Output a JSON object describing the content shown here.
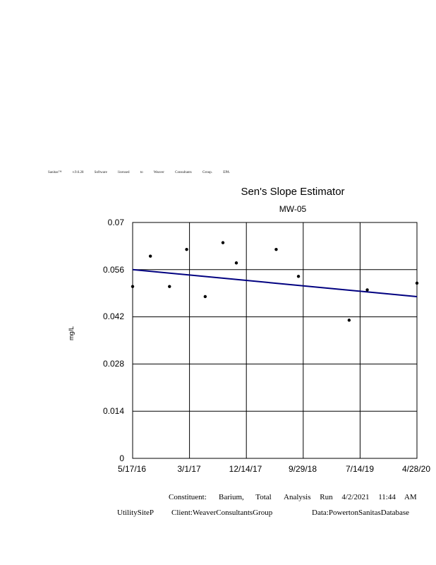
{
  "header": {
    "license_text": "Sanitas™ v.9.6.28 Software licensed to Weaver Consultants Group. EPA"
  },
  "chart_data": {
    "type": "scatter",
    "title": "Sen's Slope Estimator",
    "subtitle": "MW-05",
    "ylabel": "mg/L",
    "xlabel": "",
    "ylim": [
      0,
      0.07
    ],
    "xlim": [
      "2016-05-17",
      "2020-04-28"
    ],
    "y_ticks": [
      "0",
      "0.014",
      "0.028",
      "0.042",
      "0.056",
      "0.07"
    ],
    "x_ticks": [
      "5/17/16",
      "3/1/17",
      "12/14/17",
      "9/29/18",
      "7/14/19",
      "4/28/20"
    ],
    "grid": true,
    "series": [
      {
        "points": [
          {
            "x": "2016-05-17",
            "y": 0.051
          },
          {
            "x": "2016-08-15",
            "y": 0.06
          },
          {
            "x": "2016-11-20",
            "y": 0.051
          },
          {
            "x": "2017-02-15",
            "y": 0.062
          },
          {
            "x": "2017-05-20",
            "y": 0.048
          },
          {
            "x": "2017-08-18",
            "y": 0.064
          },
          {
            "x": "2017-10-25",
            "y": 0.058
          },
          {
            "x": "2018-05-15",
            "y": 0.062
          },
          {
            "x": "2018-09-05",
            "y": 0.054
          },
          {
            "x": "2019-05-20",
            "y": 0.041
          },
          {
            "x": "2019-08-20",
            "y": 0.05
          },
          {
            "x": "2020-04-28",
            "y": 0.052
          }
        ]
      }
    ],
    "trend_line": {
      "start": {
        "x": "2016-05-17",
        "y": 0.056
      },
      "end": {
        "x": "2020-04-28",
        "y": 0.048
      }
    },
    "colors": {
      "points": "#000000",
      "trend": "#000080",
      "grid": "#000000"
    }
  },
  "footer": {
    "constituent_label": "Constituent:",
    "constituent_value": "Barium, Total",
    "analysis_run": "Analysis Run 4/2/2021 11:44 AM",
    "site": "UtilitySiteP",
    "client": "Client:WeaverConsultantsGroup",
    "database": "Data:PowertonSanitasDatabase"
  }
}
